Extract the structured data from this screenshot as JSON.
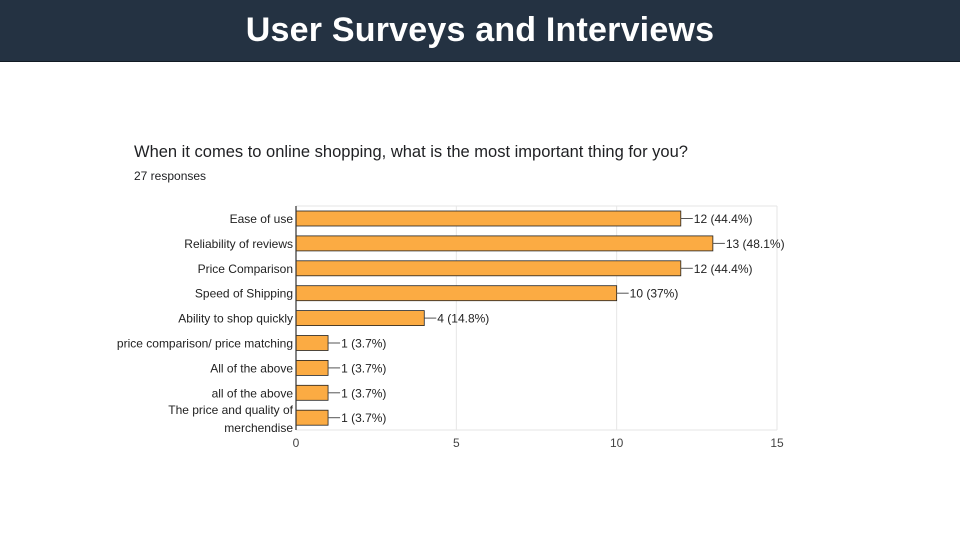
{
  "header": {
    "title": "User Surveys and Interviews"
  },
  "survey": {
    "question": "When it comes to online shopping, what is the most important thing for you?",
    "responses": "27 responses"
  },
  "chart_data": {
    "type": "bar",
    "orientation": "horizontal",
    "categories": [
      [
        "Ease of use"
      ],
      [
        "Reliability of reviews"
      ],
      [
        "Price Comparison"
      ],
      [
        "Speed of Shipping"
      ],
      [
        "Ability to shop quickly"
      ],
      [
        "price comparison/ price matching"
      ],
      [
        "All of the above"
      ],
      [
        "all of the above"
      ],
      [
        "The price and quality of",
        "merchendise"
      ]
    ],
    "values": [
      12,
      13,
      12,
      10,
      4,
      1,
      1,
      1,
      1
    ],
    "data_labels": [
      "12 (44.4%)",
      "13 (48.1%)",
      "12 (44.4%)",
      "10 (37%)",
      "4 (14.8%)",
      "1 (3.7%)",
      "1 (3.7%)",
      "1 (3.7%)",
      "1 (3.7%)"
    ],
    "xlim": [
      0,
      15
    ],
    "xticks": [
      "0",
      "5",
      "10",
      "15"
    ],
    "grid": true,
    "colors": {
      "bar": "#fbab43",
      "bar_border": "#222222",
      "grid": "#e6e6e6",
      "axis": "#333333",
      "text": "#222222"
    }
  }
}
